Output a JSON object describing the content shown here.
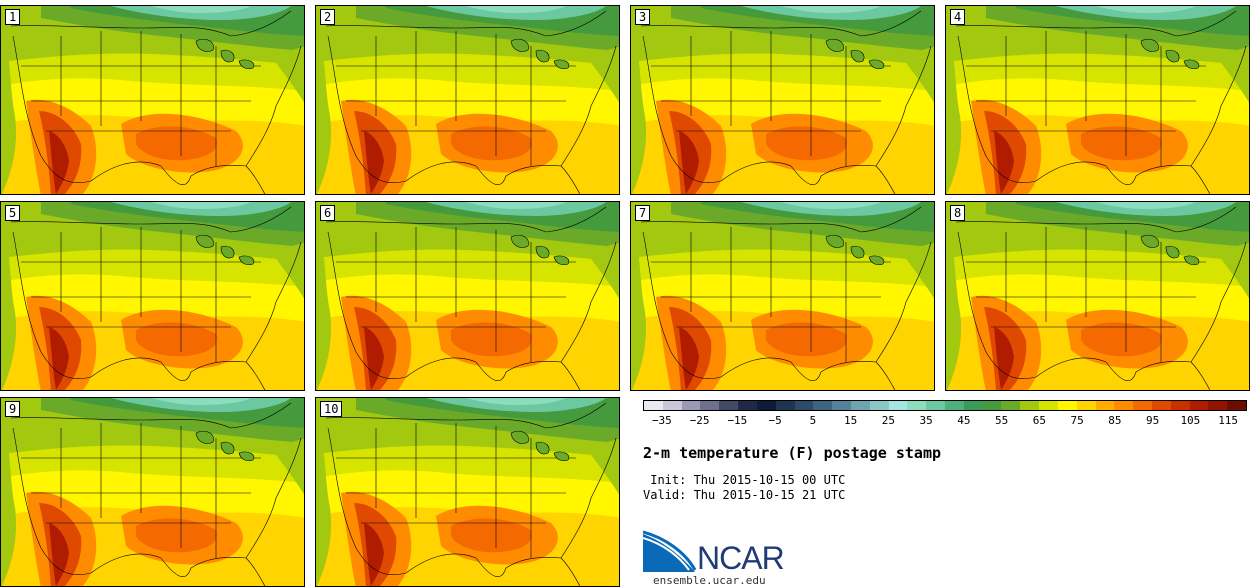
{
  "panels": [
    {
      "label": "1"
    },
    {
      "label": "2"
    },
    {
      "label": "3"
    },
    {
      "label": "4"
    },
    {
      "label": "5"
    },
    {
      "label": "6"
    },
    {
      "label": "7"
    },
    {
      "label": "8"
    },
    {
      "label": "9"
    },
    {
      "label": "10"
    }
  ],
  "colorbar": {
    "colors": [
      "#e9e9f2",
      "#c8c8da",
      "#9a9ab4",
      "#6e708c",
      "#444966",
      "#1f2847",
      "#0f1c38",
      "#1e3550",
      "#2d4b68",
      "#3d6480",
      "#558298",
      "#6ea4b0",
      "#8cc6c8",
      "#a6e6e0",
      "#8cdcbe",
      "#6cc8a0",
      "#4eb07e",
      "#3c9a5a",
      "#449a3c",
      "#6aaa28",
      "#a2c810",
      "#d6e400",
      "#fff600",
      "#ffd400",
      "#ffae00",
      "#ff8c00",
      "#f56a00",
      "#e04a00",
      "#c83000",
      "#b01c00",
      "#901400",
      "#6e0c00"
    ],
    "ticks": [
      "−35",
      "−25",
      "−15",
      "−5",
      "5",
      "15",
      "25",
      "35",
      "45",
      "55",
      "65",
      "75",
      "85",
      "95",
      "105",
      "115"
    ]
  },
  "title": "2-m temperature (F) postage stamp",
  "init": " Init: Thu 2015-10-15 00 UTC",
  "valid": "Valid: Thu 2015-10-15 21 UTC",
  "logo": {
    "text": "NCAR",
    "url": "ensemble.ucar.edu"
  }
}
